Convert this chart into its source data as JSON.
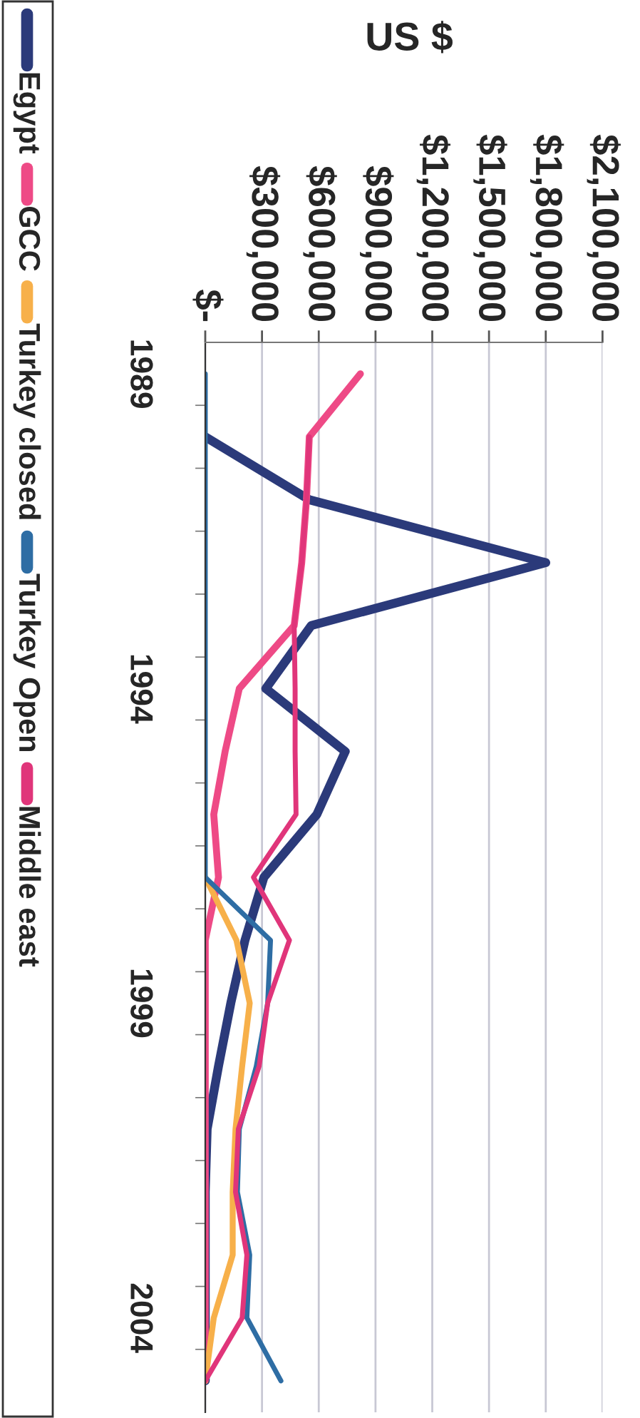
{
  "chart_data": {
    "type": "line",
    "orientation": "horizontal",
    "xlabel": "US $",
    "categories": [
      "1989",
      null,
      null,
      null,
      null,
      "1994",
      null,
      null,
      null,
      null,
      "1999",
      null,
      null,
      null,
      null,
      "2004",
      null
    ],
    "series": [
      {
        "name": "Egypt",
        "color": "#2b3a7a",
        "values": [
          null,
          0,
          550000,
          1800000,
          560000,
          320000,
          740000,
          590000,
          310000,
          210000,
          135000,
          70000,
          10000,
          0,
          0,
          0,
          0
        ]
      },
      {
        "name": "GCC",
        "color": "#ee4a86",
        "values": [
          820000,
          550000,
          535000,
          510000,
          470000,
          180000,
          105000,
          45000,
          70000,
          0,
          0,
          0,
          0,
          0,
          0,
          0,
          0
        ]
      },
      {
        "name": "Turkey closed",
        "color": "#f7b04a",
        "values": [
          null,
          null,
          null,
          null,
          null,
          null,
          null,
          null,
          0,
          165000,
          235000,
          195000,
          160000,
          145000,
          145000,
          45000,
          0
        ]
      },
      {
        "name": "Turkey Open",
        "color": "#2e6da4",
        "values": [
          0,
          0,
          0,
          0,
          0,
          0,
          0,
          0,
          0,
          345000,
          330000,
          270000,
          180000,
          170000,
          235000,
          220000,
          400000
        ]
      },
      {
        "name": "Middle east",
        "color": "#e0357a",
        "values": [
          null,
          550000,
          535000,
          510000,
          470000,
          475000,
          475000,
          480000,
          255000,
          445000,
          330000,
          285000,
          175000,
          160000,
          220000,
          195000,
          0
        ]
      }
    ],
    "xlim": [
      0,
      2100000
    ],
    "xticks": [
      {
        "value": 0,
        "label": "$-"
      },
      {
        "value": 300000,
        "label": "$300,000"
      },
      {
        "value": 600000,
        "label": "$600,000"
      },
      {
        "value": 900000,
        "label": "$900,000"
      },
      {
        "value": 1200000,
        "label": "$1,200,000"
      },
      {
        "value": 1500000,
        "label": "$1,500,000"
      },
      {
        "value": 1800000,
        "label": "$1,800,000"
      },
      {
        "value": 2100000,
        "label": "$2,100,000"
      }
    ],
    "grid": "x",
    "legend": "left",
    "marker": "none",
    "line_style": "solid"
  }
}
